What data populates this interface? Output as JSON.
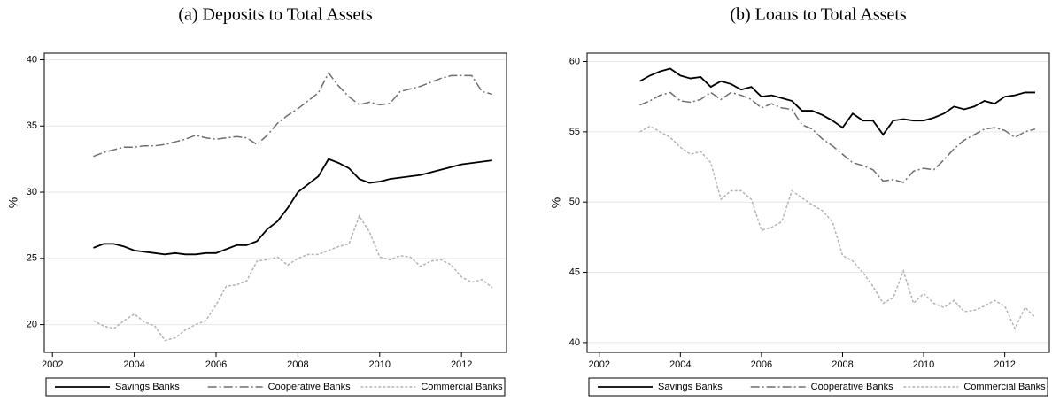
{
  "chart_data": [
    {
      "type": "line",
      "title": "(a) Deposits to Total Assets",
      "y_label": "%",
      "x": [
        2003,
        2003.25,
        2003.5,
        2003.75,
        2004,
        2004.25,
        2004.5,
        2004.75,
        2005,
        2005.25,
        2005.5,
        2005.75,
        2006,
        2006.25,
        2006.5,
        2006.75,
        2007,
        2007.25,
        2007.5,
        2007.75,
        2008,
        2008.25,
        2008.5,
        2008.75,
        2009,
        2009.25,
        2009.5,
        2009.75,
        2010,
        2010.25,
        2010.5,
        2010.75,
        2011,
        2011.25,
        2011.5,
        2011.75,
        2012,
        2012.25,
        2012.5,
        2012.75
      ],
      "series": [
        {
          "name": "Savings Banks",
          "color": "#000000",
          "line_style": "solid",
          "values": [
            25.8,
            26.1,
            26.1,
            25.9,
            25.6,
            25.5,
            25.4,
            25.3,
            25.4,
            25.3,
            25.3,
            25.4,
            25.4,
            25.7,
            26.0,
            26.0,
            26.3,
            27.2,
            27.8,
            28.8,
            30.0,
            30.6,
            31.2,
            32.5,
            32.2,
            31.8,
            31.0,
            30.7,
            30.8,
            31.0,
            31.1,
            31.2,
            31.3,
            31.5,
            31.7,
            31.9,
            32.1,
            32.2,
            32.3,
            32.4
          ]
        },
        {
          "name": "Cooperative Banks",
          "color": "#6e6e6e",
          "line_style": "dashed",
          "values": [
            32.7,
            33.0,
            33.2,
            33.4,
            33.4,
            33.5,
            33.5,
            33.6,
            33.8,
            34.0,
            34.3,
            34.1,
            34.0,
            34.1,
            34.2,
            34.1,
            33.6,
            34.3,
            35.2,
            35.8,
            36.3,
            36.9,
            37.5,
            39.0,
            38.0,
            37.2,
            36.6,
            36.8,
            36.6,
            36.7,
            37.6,
            37.8,
            38.0,
            38.3,
            38.6,
            38.8,
            38.8,
            38.8,
            37.6,
            37.4
          ]
        },
        {
          "name": "Commercial Banks",
          "color": "#b4b4b4",
          "line_style": "dotted",
          "values": [
            20.3,
            19.9,
            19.7,
            20.3,
            20.8,
            20.2,
            19.9,
            18.8,
            19.0,
            19.6,
            20.0,
            20.3,
            21.5,
            22.9,
            23.0,
            23.3,
            24.8,
            24.9,
            25.1,
            24.5,
            25.0,
            25.3,
            25.3,
            25.6,
            25.9,
            26.1,
            28.2,
            27.0,
            25.1,
            24.9,
            25.2,
            25.1,
            24.4,
            24.8,
            24.9,
            24.5,
            23.6,
            23.2,
            23.4,
            22.8
          ]
        }
      ],
      "xlim": [
        2001.8,
        2013.1
      ],
      "ylim": [
        17.9,
        40.5
      ],
      "xticks": [
        2002,
        2004,
        2006,
        2008,
        2010,
        2012
      ],
      "yticks": [
        20,
        25,
        30,
        35,
        40
      ],
      "grid": true,
      "legend": "bottom"
    },
    {
      "type": "line",
      "title": "(b) Loans to Total Assets",
      "y_label": "%",
      "x": [
        2003,
        2003.25,
        2003.5,
        2003.75,
        2004,
        2004.25,
        2004.5,
        2004.75,
        2005,
        2005.25,
        2005.5,
        2005.75,
        2006,
        2006.25,
        2006.5,
        2006.75,
        2007,
        2007.25,
        2007.5,
        2007.75,
        2008,
        2008.25,
        2008.5,
        2008.75,
        2009,
        2009.25,
        2009.5,
        2009.75,
        2010,
        2010.25,
        2010.5,
        2010.75,
        2011,
        2011.25,
        2011.5,
        2011.75,
        2012,
        2012.25,
        2012.5,
        2012.75
      ],
      "series": [
        {
          "name": "Savings Banks",
          "color": "#000000",
          "line_style": "solid",
          "values": [
            58.6,
            59.0,
            59.3,
            59.5,
            59.0,
            58.8,
            58.9,
            58.2,
            58.6,
            58.4,
            58.0,
            58.2,
            57.5,
            57.6,
            57.4,
            57.2,
            56.5,
            56.5,
            56.2,
            55.8,
            55.3,
            56.3,
            55.8,
            55.8,
            54.8,
            55.8,
            55.9,
            55.8,
            55.8,
            56.0,
            56.3,
            56.8,
            56.6,
            56.8,
            57.2,
            57.0,
            57.5,
            57.6,
            57.8,
            57.8
          ]
        },
        {
          "name": "Cooperative Banks",
          "color": "#6e6e6e",
          "line_style": "dashed",
          "values": [
            56.9,
            57.2,
            57.6,
            57.8,
            57.2,
            57.1,
            57.3,
            57.8,
            57.3,
            57.8,
            57.6,
            57.3,
            56.7,
            57.0,
            56.7,
            56.6,
            55.5,
            55.2,
            54.5,
            54.0,
            53.4,
            52.8,
            52.6,
            52.3,
            51.5,
            51.6,
            51.4,
            52.2,
            52.4,
            52.3,
            53.0,
            53.8,
            54.4,
            54.8,
            55.2,
            55.3,
            55.1,
            54.6,
            55.0,
            55.2
          ]
        },
        {
          "name": "Commercial Banks",
          "color": "#b4b4b4",
          "line_style": "dotted",
          "values": [
            55.0,
            55.4,
            55.0,
            54.6,
            53.9,
            53.4,
            53.6,
            52.8,
            50.2,
            50.8,
            50.8,
            50.2,
            48.0,
            48.2,
            48.6,
            50.8,
            50.3,
            49.8,
            49.4,
            48.6,
            46.2,
            45.8,
            45.0,
            44.0,
            42.8,
            43.2,
            45.1,
            42.8,
            43.5,
            42.8,
            42.5,
            43.0,
            42.2,
            42.3,
            42.6,
            43.0,
            42.6,
            41.0,
            42.5,
            41.8
          ]
        }
      ],
      "xlim": [
        2001.7,
        2013.1
      ],
      "ylim": [
        39.3,
        60.6
      ],
      "xticks": [
        2002,
        2004,
        2006,
        2008,
        2010,
        2012
      ],
      "yticks": [
        40,
        45,
        50,
        55,
        60
      ],
      "grid": true,
      "legend": "bottom"
    }
  ]
}
